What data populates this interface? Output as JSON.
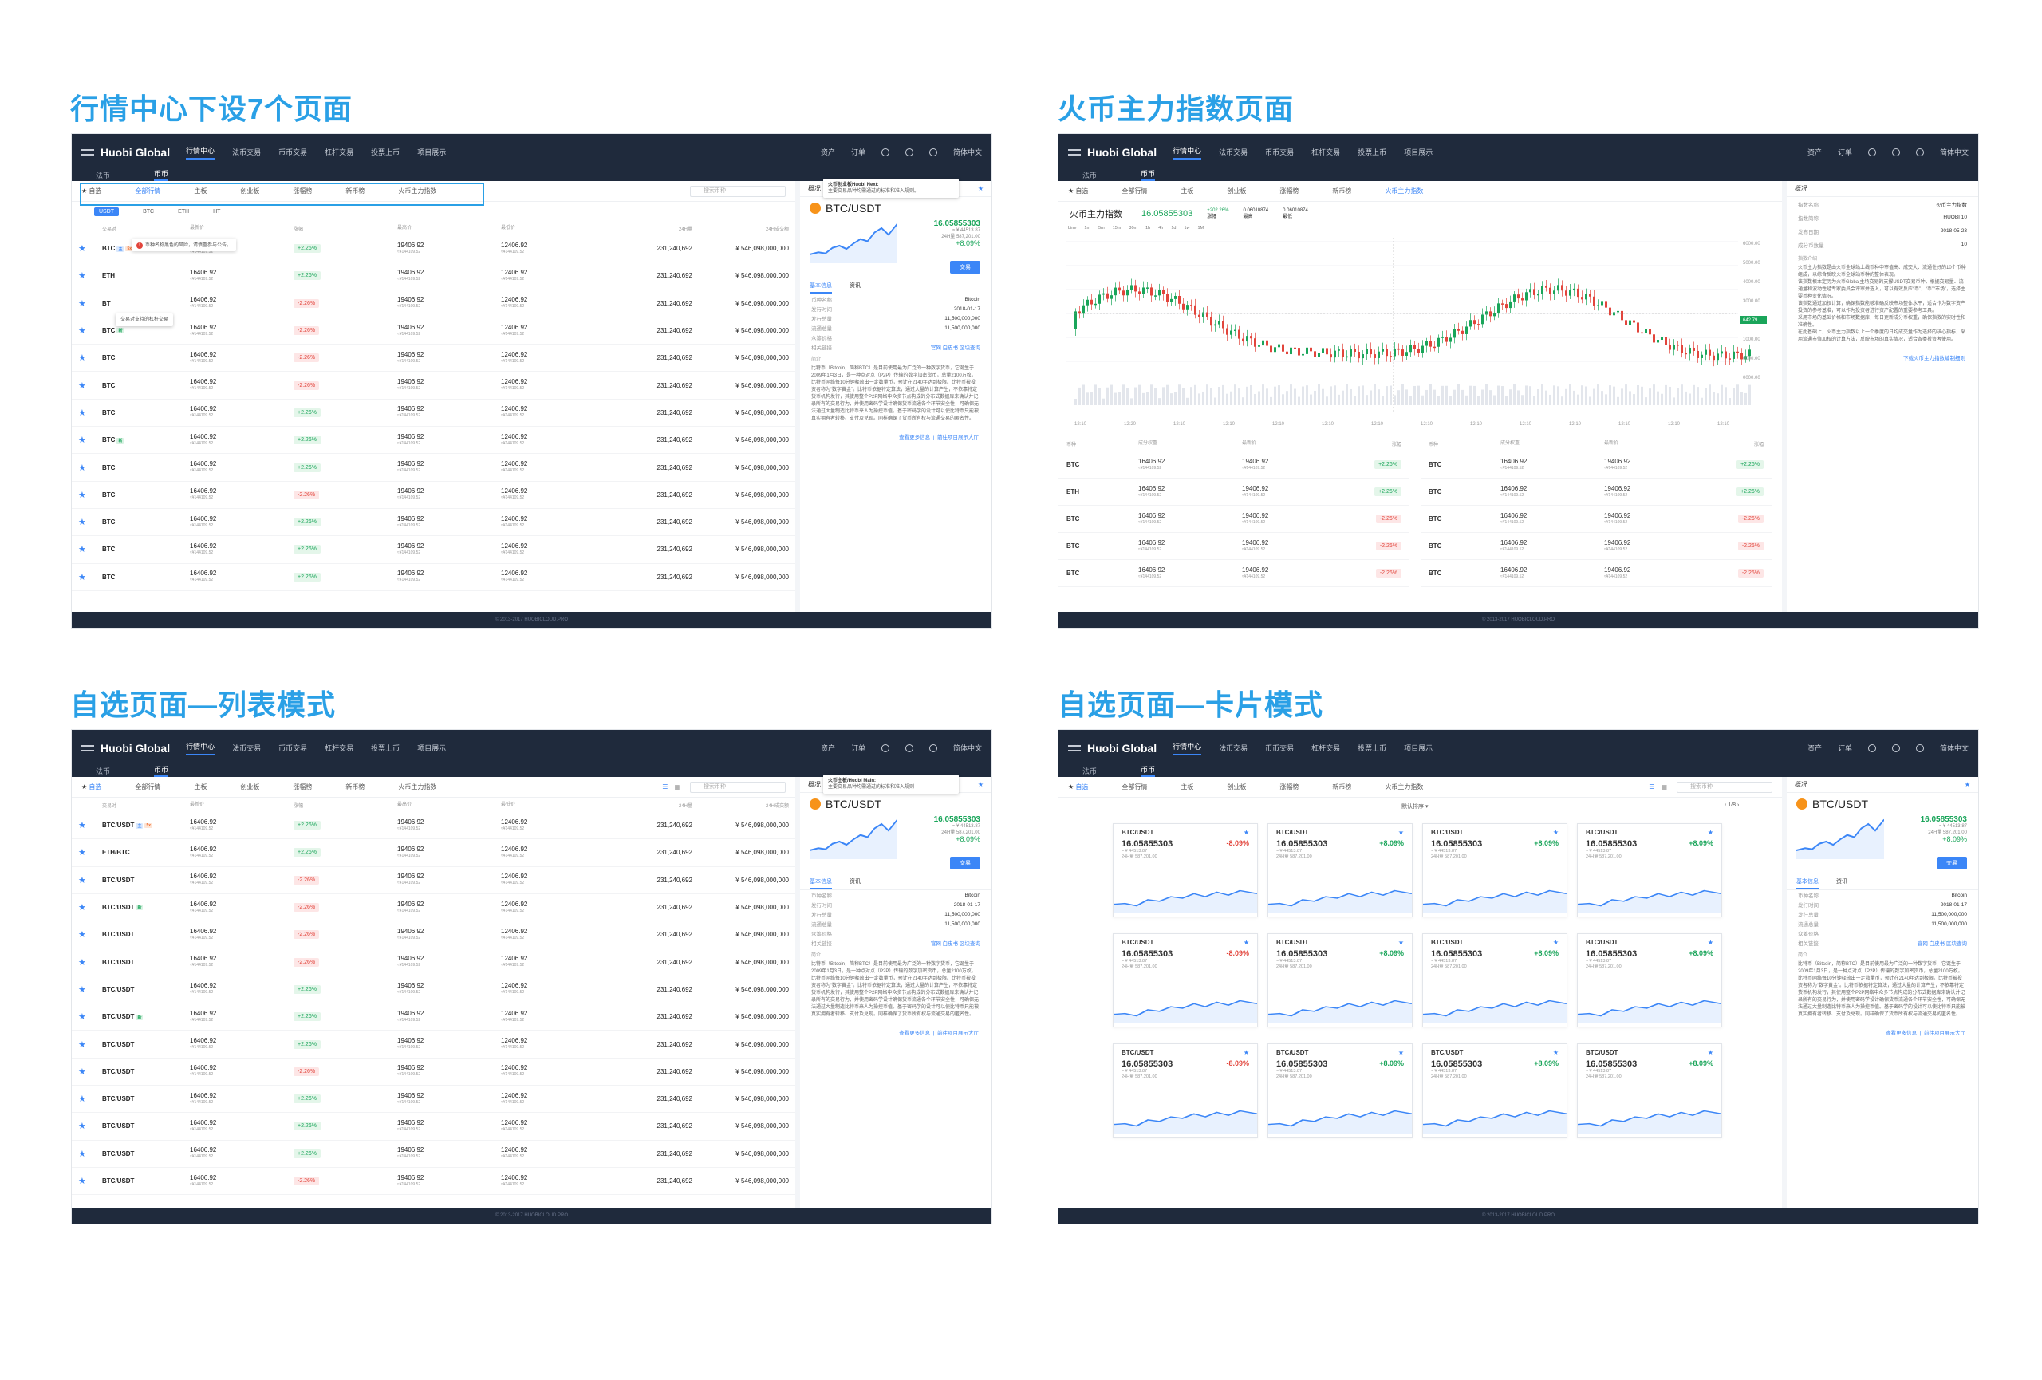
{
  "sections": {
    "s1": "行情中心下设7个页面",
    "s2": "火币主力指数页面",
    "s3": "自选页面—列表模式",
    "s4": "自选页面—卡片模式"
  },
  "colors": {
    "accent": "#3b86f7",
    "title": "#2aa0e6",
    "up": "#1aa55a",
    "down": "#e2453c",
    "nav_bg": "#1f2a3c"
  },
  "nav": {
    "logo": "Huobi Global",
    "items": [
      "行情中心",
      "法币交易",
      "币币交易",
      "杠杆交易",
      "投票上币",
      "项目展示"
    ],
    "right": [
      "资产",
      "订单",
      "简体中文"
    ],
    "sub": [
      "法币",
      "币币"
    ]
  },
  "tabs": [
    "自选",
    "全部行情",
    "主板",
    "创业板",
    "涨幅榜",
    "新币榜",
    "火币主力指数"
  ],
  "tabs_card": [
    "自选",
    "全部行情",
    "主板",
    "创业板",
    "涨幅榜",
    "新币榜",
    "火币主力指数"
  ],
  "search_placeholder": "搜索币种",
  "subtabs": [
    "USDT",
    "BTC",
    "ETH",
    "HT"
  ],
  "table_head": [
    "交易对",
    "最新价",
    "涨幅",
    "最高价",
    "最低价",
    "24H量",
    "24H成交额"
  ],
  "warn_text": "币种名称黑色的风险，请慎重参与公告。",
  "lever_tip": "交易对支持的杠杆交易",
  "index_tip": {
    "title": "火币主板/Huobi Main:",
    "text": "主要交易品种均需通过的标准和准入规则"
  },
  "index_tip2": {
    "title": "火币创业板Huobi Next:",
    "text": "主要交易品种均需通过的标准和准入规则。"
  },
  "p1_rows": [
    {
      "pair": "BTC",
      "tags": [
        "b",
        "o"
      ],
      "chg": "+2.26%",
      "dir": "up"
    },
    {
      "pair": "ETH",
      "tags": [],
      "chg": "+2.26%",
      "dir": "up"
    },
    {
      "pair": "BT",
      "tags": [],
      "chg": "-2.26%",
      "dir": "dn"
    },
    {
      "pair": "BTC",
      "tags": [
        "g"
      ],
      "chg": "-2.26%",
      "dir": "dn"
    },
    {
      "pair": "BTC",
      "tags": [],
      "chg": "-2.26%",
      "dir": "dn"
    },
    {
      "pair": "BTC",
      "tags": [],
      "chg": "-2.26%",
      "dir": "dn"
    },
    {
      "pair": "BTC",
      "tags": [],
      "chg": "+2.26%",
      "dir": "up"
    },
    {
      "pair": "BTC",
      "tags": [
        "g"
      ],
      "chg": "+2.26%",
      "dir": "up"
    },
    {
      "pair": "BTC",
      "tags": [],
      "chg": "+2.26%",
      "dir": "up"
    },
    {
      "pair": "BTC",
      "tags": [],
      "chg": "-2.26%",
      "dir": "dn"
    },
    {
      "pair": "BTC",
      "tags": [],
      "chg": "+2.26%",
      "dir": "up"
    },
    {
      "pair": "BTC",
      "tags": [],
      "chg": "+2.26%",
      "dir": "up"
    },
    {
      "pair": "BTC",
      "tags": [],
      "chg": "+2.26%",
      "dir": "up"
    }
  ],
  "p3_rows": [
    {
      "pair": "BTC/USDT",
      "tags": [
        "b",
        "o"
      ],
      "chg": "+2.26%",
      "dir": "up"
    },
    {
      "pair": "ETH/BTC",
      "tags": [],
      "chg": "+2.26%",
      "dir": "up"
    },
    {
      "pair": "BTC/USDT",
      "tags": [],
      "chg": "-2.26%",
      "dir": "dn"
    },
    {
      "pair": "BTC/USDT",
      "tags": [
        "g"
      ],
      "chg": "-2.26%",
      "dir": "dn"
    },
    {
      "pair": "BTC/USDT",
      "tags": [],
      "chg": "-2.26%",
      "dir": "dn"
    },
    {
      "pair": "BTC/USDT",
      "tags": [],
      "chg": "-2.26%",
      "dir": "dn"
    },
    {
      "pair": "BTC/USDT",
      "tags": [],
      "chg": "+2.26%",
      "dir": "up"
    },
    {
      "pair": "BTC/USDT",
      "tags": [
        "g"
      ],
      "chg": "+2.26%",
      "dir": "up"
    },
    {
      "pair": "BTC/USDT",
      "tags": [],
      "chg": "+2.26%",
      "dir": "up"
    },
    {
      "pair": "BTC/USDT",
      "tags": [],
      "chg": "-2.26%",
      "dir": "dn"
    },
    {
      "pair": "BTC/USDT",
      "tags": [],
      "chg": "+2.26%",
      "dir": "up"
    },
    {
      "pair": "BTC/USDT",
      "tags": [],
      "chg": "+2.26%",
      "dir": "up"
    },
    {
      "pair": "BTC/USDT",
      "tags": [],
      "chg": "+2.26%",
      "dir": "up"
    },
    {
      "pair": "BTC/USDT",
      "tags": [],
      "chg": "-2.26%",
      "dir": "dn"
    }
  ],
  "row_values": {
    "last": "16406.92",
    "last_sub": "≈¥144109.52",
    "high": "19406.92",
    "high_sub": "≈¥144109.52",
    "low": "12406.92",
    "low_sub": "≈¥144109.52",
    "vol": "231,240,692",
    "amount": "¥ 546,098,000,000"
  },
  "detail": {
    "header": "概况",
    "pair": "BTC/USDT",
    "price": "16.05855303",
    "cny": "≈ ¥ 44513.87",
    "vol24": "24H量 587,201.00",
    "chg": "+8.09%",
    "trade": "交易",
    "tabs": [
      "基本信息",
      "资讯"
    ],
    "kv": [
      [
        "币种名称",
        "Bitcoin"
      ],
      [
        "发行时间",
        "2018-01-17"
      ],
      [
        "发行总量",
        "11,500,000,000"
      ],
      [
        "流通总量",
        "11,500,000,000"
      ],
      [
        "众筹价格",
        ""
      ],
      [
        "相关链接",
        "官网    白皮书    区块查询"
      ]
    ],
    "intro_title": "简介",
    "intro": "比特币（Bitcoin，简称BTC）是目前使用最为广泛的一种数字货币，它诞生于2009年1月3日，是一种点对点（P2P）传输的数字加密货币，总量2100万枚。比特币网络每10分钟释放出一定数量币，预计在2140年达到极限。比特币被投资者称为“数字黄金”。比特币依据特定算法，通过大量的计算产生，不依靠特定货币机构发行，其使用整个P2P网络中众多节点构成的分布式数据库来确认并记录所有的交易行为，并使用密码学设计确保货币流通各个环节安全性，可确保无法通过大量制造比特币来人为操控币值。基于密码学的设计可以使比特币只能被真实拥有者转移、支付及兑现。同样确保了货币所有权与流通交易的匿名性。",
    "more": "查看更多信息",
    "more2": "前往项目展示大厅"
  },
  "index_page": {
    "title": "火币主力指数",
    "price": "16.05855303",
    "chg": "+202.26%",
    "chg_label": "涨幅",
    "high": "0.06010874",
    "high_label": "最高",
    "low": "0.06010874",
    "low_label": "最低",
    "timeframes": [
      "Line",
      "1m",
      "5m",
      "15m",
      "30m",
      "1h",
      "4h",
      "1d",
      "1w",
      "1M"
    ],
    "time_labels": [
      "12:10",
      "12:20",
      "12:10",
      "12:10",
      "12:10",
      "12:10",
      "12:10",
      "12:10",
      "12:10",
      "12:10",
      "12:10",
      "12:10",
      "12:10",
      "12:10"
    ],
    "price_labels": [
      "6000.00",
      "5000.00",
      "4000.00",
      "3000.00",
      "642.79",
      "1000.00",
      "0000.00",
      "0000.00"
    ],
    "tbl_head": [
      "币种",
      "成分权重",
      "最新价",
      "涨幅"
    ],
    "left_rows": [
      {
        "coin": "BTC",
        "chg": "+2.26%",
        "dir": "up"
      },
      {
        "coin": "ETH",
        "chg": "+2.26%",
        "dir": "up"
      },
      {
        "coin": "BTC",
        "chg": "-2.26%",
        "dir": "dn"
      },
      {
        "coin": "BTC",
        "chg": "-2.26%",
        "dir": "dn"
      },
      {
        "coin": "BTC",
        "chg": "-2.26%",
        "dir": "dn"
      }
    ],
    "right_rows": [
      {
        "coin": "BTC",
        "chg": "+2.26%",
        "dir": "up"
      },
      {
        "coin": "BTC",
        "chg": "+2.26%",
        "dir": "up"
      },
      {
        "coin": "BTC",
        "chg": "-2.26%",
        "dir": "dn"
      },
      {
        "coin": "BTC",
        "chg": "-2.26%",
        "dir": "dn"
      },
      {
        "coin": "BTC",
        "chg": "-2.26%",
        "dir": "dn"
      }
    ],
    "overview": "概况",
    "kv": [
      [
        "指数名称",
        "火币主力指数"
      ],
      [
        "指数简称",
        "HUOBI 10"
      ],
      [
        "发布日期",
        "2018-05-23"
      ],
      [
        "成分币数量",
        "10"
      ]
    ],
    "intro_title": "指数介绍",
    "intro": "火币主力指数是由火币全球站上线币种中市值高、成交大、流通性好的10个币种组成，以综合反映火币全球站币种的整体表现。\n该指数根本定历为火币Global主场交易的支撑USDT交易币种，根据交易量、流通量和波动性经专家委员会评审并选入，可以有效反应“币”，“币”“市场”，选择主要币种变化情况。\n该指数通过加权计算，确保指数能够准确反映市场整体水平，适合作为数字资产投资的参考基准，可以作为投资者进行资产配置的重要参考工具。\n采用市场的基础价格和市场数据库，每日更新成分币权重，确保指数的实时性和准确性。\n在此基础上，火币主力指数以上一个季度的日均成交量作为选择的核心指标，采用流通市值加权的计算方法，反映市场的真实情况，适合各类投资者使用。",
    "download": "下载火币主力指数编制细则"
  },
  "card_page": {
    "sort": "默认排序",
    "page": "1/8",
    "cards": [
      {
        "pair": "BTC/USDT",
        "tags": true,
        "chg": "-8.09%",
        "dir": "dn"
      },
      {
        "pair": "BTC/USDT",
        "tags": false,
        "chg": "+8.09%",
        "dir": "up"
      },
      {
        "pair": "BTC/USDT",
        "tags": false,
        "chg": "+8.09%",
        "dir": "up"
      },
      {
        "pair": "BTC/USDT",
        "tags": false,
        "chg": "+8.09%",
        "dir": "up"
      },
      {
        "pair": "BTC/USDT",
        "tags": false,
        "chg": "-8.09%",
        "dir": "dn"
      },
      {
        "pair": "BTC/USDT",
        "tags": false,
        "chg": "+8.09%",
        "dir": "up"
      },
      {
        "pair": "BTC/USDT",
        "tags": false,
        "chg": "+8.09%",
        "dir": "up"
      },
      {
        "pair": "BTC/USDT",
        "tags": false,
        "chg": "+8.09%",
        "dir": "up"
      },
      {
        "pair": "BTC/USDT",
        "tags": false,
        "chg": "-8.09%",
        "dir": "dn"
      },
      {
        "pair": "BTC/USDT",
        "tags": false,
        "chg": "+8.09%",
        "dir": "up"
      },
      {
        "pair": "BTC/USDT",
        "tags": false,
        "chg": "+8.09%",
        "dir": "up"
      },
      {
        "pair": "BTC/USDT",
        "tags": false,
        "chg": "+8.09%",
        "dir": "up"
      }
    ],
    "card_price": "16.05855303",
    "card_cny": "≈ ¥ 44513.87",
    "card_vol": "24H量 587,201.00"
  },
  "footer": "© 2013-2017 HUOBICLOUD.PRO"
}
